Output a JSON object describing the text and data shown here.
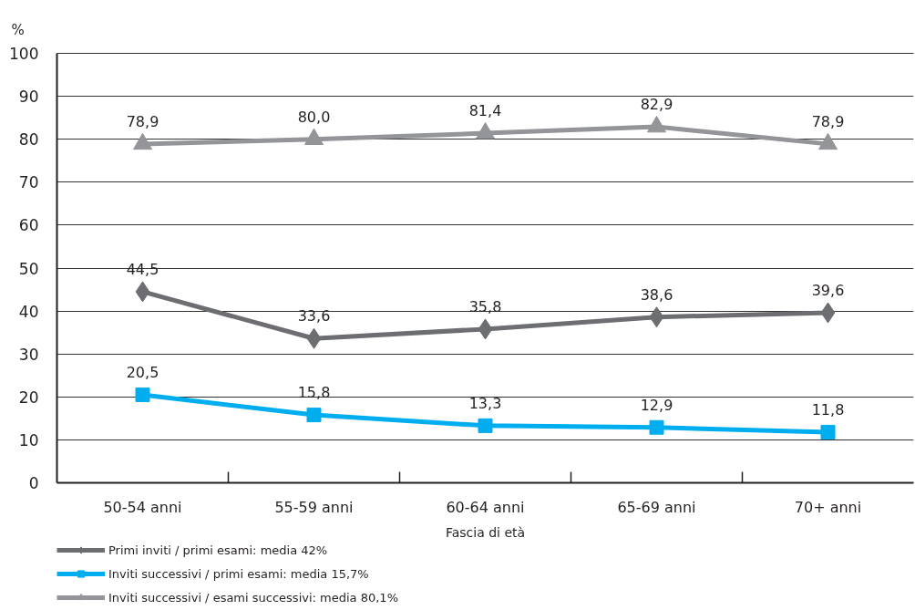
{
  "chart_data": {
    "type": "line",
    "xlabel": "Fascia di età",
    "ylabel": "%",
    "categories": [
      "50-54 anni",
      "55-59 anni",
      "60-64 anni",
      "65-69 anni",
      "70+ anni"
    ],
    "series": [
      {
        "name": "Primi inviti / primi esami: media 42%",
        "color": "#6d6e71",
        "marker": "diamond",
        "values": [
          44.5,
          33.6,
          35.8,
          38.6,
          39.6
        ],
        "value_labels": [
          "44,5",
          "33,6",
          "35,8",
          "38,6",
          "39,6"
        ]
      },
      {
        "name": "Inviti successivi / primi esami: media 15,7%",
        "color": "#00aeef",
        "marker": "square",
        "values": [
          20.5,
          15.8,
          13.3,
          12.9,
          11.8
        ],
        "value_labels": [
          "20,5",
          "15,8",
          "13,3",
          "12,9",
          "11,8"
        ]
      },
      {
        "name": "Inviti successivi / esami successivi: media 80,1%",
        "color": "#939598",
        "marker": "triangle",
        "values": [
          78.9,
          80.0,
          81.4,
          82.9,
          78.9
        ],
        "value_labels": [
          "78,9",
          "80,0",
          "81,4",
          "82,9",
          "78,9"
        ]
      }
    ],
    "ylim": [
      0,
      100
    ],
    "yticks": [
      0,
      10,
      20,
      30,
      40,
      50,
      60,
      70,
      80,
      90,
      100
    ],
    "grid": "y",
    "legend": "bottom left",
    "line_style": "solid"
  }
}
